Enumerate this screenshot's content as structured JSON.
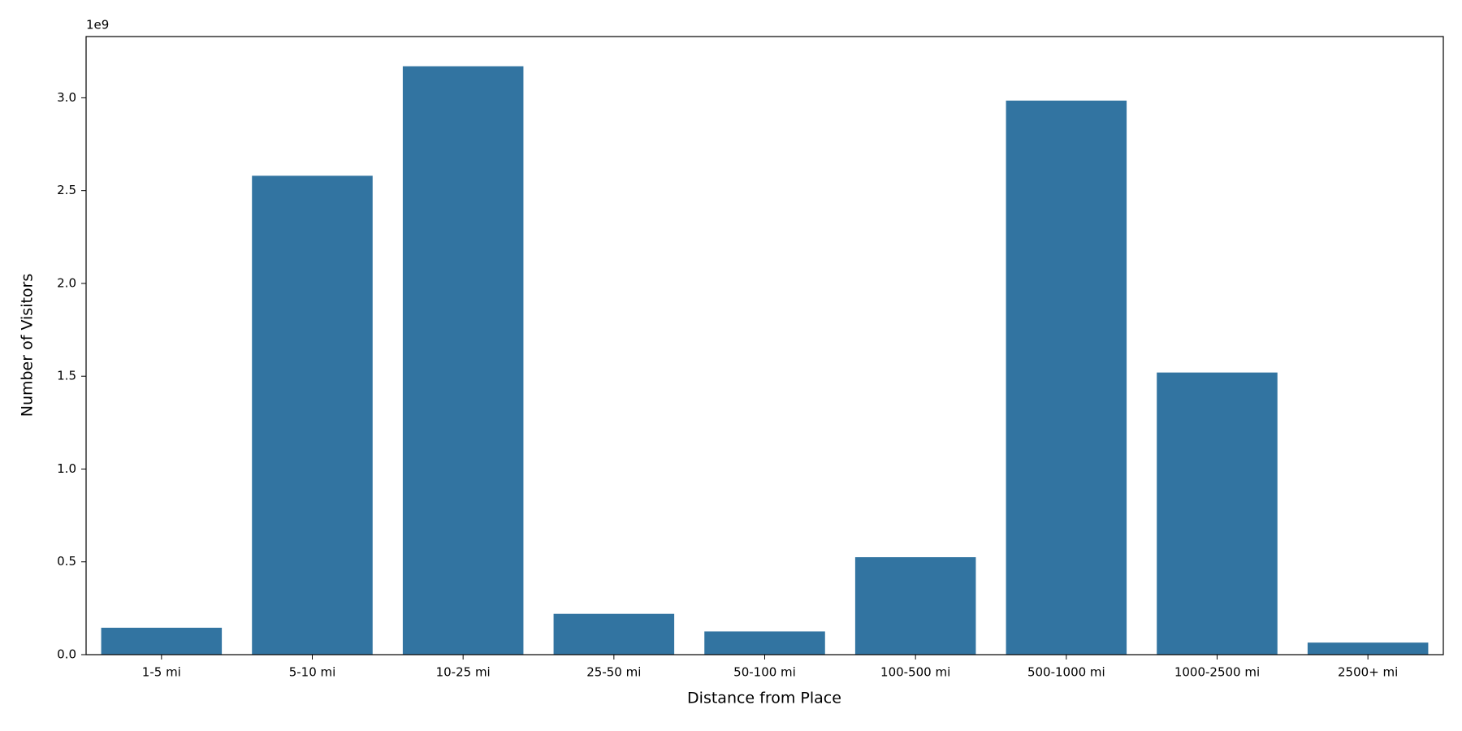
{
  "chart_data": {
    "type": "bar",
    "x_label": "Distance from Place",
    "y_label": "Number of Visitors",
    "y_offset_label": "1e9",
    "categories": [
      "1-5 mi",
      "5-10 mi",
      "10-25 mi",
      "25-50 mi",
      "50-100 mi",
      "100-500 mi",
      "500-1000 mi",
      "1000-2500 mi",
      "2500+ mi"
    ],
    "values": [
      0.145,
      2.58,
      3.17,
      0.22,
      0.125,
      0.525,
      2.985,
      1.52,
      0.065
    ],
    "color": "#3274a1",
    "ylim": [
      0,
      3.33
    ],
    "yticks": [
      {
        "value": 0,
        "label": "0.0"
      },
      0.5,
      {
        "value": 1,
        "label": "1.0"
      },
      1.5,
      {
        "value": 2,
        "label": "2.0"
      },
      2.5,
      {
        "value": 3,
        "label": "3.0"
      }
    ],
    "grid": false
  }
}
